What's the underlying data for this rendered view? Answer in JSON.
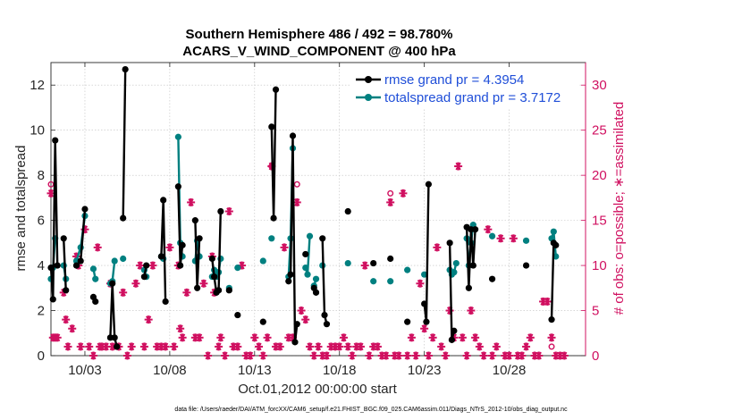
{
  "chart_data": {
    "type": "line",
    "title": "Southern Hemisphere 486 / 492 = 98.780%",
    "subtitle": "ACARS_V_WIND_COMPONENT @ 400 hPa",
    "xlabel": "Oct.01,2012 00:00:00 start",
    "ylabel": "rmse and totalspread",
    "ylabel_right": "# of obs: o=possible; ∗=assimilated",
    "footnote": "data file: /Users/raeder/DAI/ATM_forcXX/CAM6_setup/f.e21.FHIST_BGC.f09_025.CAM6assim.011/Diags_NTrS_2012-10/obs_diag_output.nc",
    "xlim": [
      1,
      32.5
    ],
    "ylim": [
      0,
      13
    ],
    "ylim_right": [
      0,
      32.5
    ],
    "xticks": [
      3,
      8,
      13,
      18,
      23,
      28
    ],
    "xticklabels": [
      "10/03",
      "10/08",
      "10/13",
      "10/18",
      "10/23",
      "10/28"
    ],
    "yticks": [
      0,
      2,
      4,
      6,
      8,
      10,
      12
    ],
    "yticks_right": [
      0,
      5,
      10,
      15,
      20,
      25,
      30
    ],
    "grid": true,
    "legend_position": "top-right",
    "colors": {
      "rmse": "#000000",
      "totalspread": "#008080",
      "obs": "#d01060",
      "legend_text": "#1f4ed8"
    },
    "series": [
      {
        "name": "rmse grand pr = 4.3954",
        "segments": [
          [
            [
              1.0,
              3.9
            ],
            [
              1.12,
              2.5
            ],
            [
              1.25,
              9.55
            ],
            [
              1.38,
              4.0
            ]
          ],
          [
            [
              1.75,
              5.2
            ],
            [
              1.88,
              2.9
            ]
          ],
          [
            [
              2.5,
              4.0
            ],
            [
              2.75,
              4.2
            ],
            [
              3.0,
              6.5
            ]
          ],
          [
            [
              3.5,
              2.6
            ],
            [
              3.62,
              2.4
            ]
          ],
          [
            [
              4.5,
              0.8
            ],
            [
              4.62,
              3.2
            ],
            [
              4.75,
              0.8
            ],
            [
              4.88,
              0.4
            ]
          ],
          [
            [
              5.25,
              6.1
            ],
            [
              5.38,
              12.7
            ]
          ],
          [
            [
              6.5,
              3.5
            ],
            [
              6.62,
              4.0
            ]
          ],
          [
            [
              7.5,
              4.4
            ],
            [
              7.62,
              6.9
            ],
            [
              7.75,
              2.4
            ]
          ],
          [
            [
              8.5,
              7.5
            ],
            [
              8.62,
              4.0
            ],
            [
              8.75,
              4.9
            ]
          ],
          [
            [
              9.5,
              6.0
            ],
            [
              9.62,
              3.0
            ],
            [
              9.75,
              5.2
            ]
          ],
          [
            [
              10.5,
              4.3
            ],
            [
              10.62,
              3.5
            ],
            [
              10.75,
              2.8
            ],
            [
              10.88,
              2.9
            ],
            [
              11.0,
              6.4
            ]
          ],
          [
            [
              11.5,
              2.9
            ]
          ],
          [
            [
              12.0,
              1.8
            ]
          ],
          [
            [
              13.5,
              1.5
            ]
          ],
          [
            [
              14.0,
              10.15
            ],
            [
              14.12,
              6.1
            ],
            [
              14.25,
              11.8
            ]
          ],
          [
            [
              15.0,
              3.3
            ],
            [
              15.12,
              3.6
            ],
            [
              15.25,
              9.75
            ],
            [
              15.38,
              0.6
            ],
            [
              15.5,
              1.4
            ]
          ],
          [
            [
              16.0,
              4.5
            ]
          ],
          [
            [
              16.5,
              3.0
            ],
            [
              16.62,
              2.8
            ]
          ],
          [
            [
              17.0,
              5.2
            ],
            [
              17.12,
              1.8
            ],
            [
              17.25,
              1.4
            ]
          ],
          [
            [
              18.5,
              6.4
            ]
          ],
          [
            [
              20.0,
              4.1
            ]
          ],
          [
            [
              21.0,
              4.3
            ]
          ],
          [
            [
              22.0,
              1.5
            ]
          ],
          [
            [
              23.0,
              2.3
            ],
            [
              23.12,
              1.5
            ],
            [
              23.25,
              7.6
            ]
          ],
          [
            [
              24.5,
              5.0
            ],
            [
              24.62,
              0.7
            ],
            [
              24.75,
              1.1
            ]
          ],
          [
            [
              25.5,
              5.7
            ],
            [
              25.62,
              3.0
            ],
            [
              25.75,
              5.6
            ],
            [
              25.88,
              4.0
            ],
            [
              26.0,
              5.6
            ]
          ],
          [
            [
              27.0,
              3.4
            ]
          ],
          [
            [
              29.0,
              4.0
            ]
          ],
          [
            [
              30.5,
              1.6
            ],
            [
              30.62,
              5.0
            ],
            [
              30.75,
              4.9
            ]
          ]
        ]
      },
      {
        "name": "totalspread grand pr = 3.7172",
        "segments": [
          [
            [
              1.0,
              3.4
            ],
            [
              1.12,
              3.9
            ],
            [
              1.25,
              5.2
            ]
          ],
          [
            [
              1.75,
              4.0
            ],
            [
              1.88,
              3.4
            ]
          ],
          [
            [
              2.5,
              4.2
            ],
            [
              2.75,
              4.8
            ],
            [
              3.0,
              6.2
            ]
          ],
          [
            [
              3.5,
              3.85
            ],
            [
              3.62,
              3.4
            ]
          ],
          [
            [
              4.5,
              3.2
            ],
            [
              4.62,
              3.3
            ],
            [
              4.75,
              4.2
            ]
          ],
          [
            [
              5.25,
              4.3
            ]
          ],
          [
            [
              6.5,
              3.8
            ],
            [
              6.62,
              3.5
            ]
          ],
          [
            [
              7.5,
              4.4
            ],
            [
              7.62,
              4.3
            ]
          ],
          [
            [
              8.5,
              9.7
            ],
            [
              8.62,
              5.0
            ],
            [
              8.75,
              4.4
            ]
          ],
          [
            [
              9.5,
              4.2
            ],
            [
              9.62,
              5.1
            ],
            [
              9.75,
              4.4
            ]
          ],
          [
            [
              10.5,
              3.5
            ],
            [
              10.62,
              3.8
            ],
            [
              10.75,
              3.5
            ],
            [
              10.88,
              3.7
            ],
            [
              11.0,
              4.3
            ]
          ],
          [
            [
              11.5,
              3.0
            ]
          ],
          [
            [
              12.0,
              3.9
            ]
          ],
          [
            [
              13.5,
              4.2
            ]
          ],
          [
            [
              14.0,
              5.2
            ]
          ],
          [
            [
              15.0,
              3.5
            ],
            [
              15.12,
              5.2
            ],
            [
              15.25,
              9.2
            ]
          ],
          [
            [
              16.0,
              3.9
            ],
            [
              16.12,
              3.6
            ],
            [
              16.25,
              5.3
            ]
          ],
          [
            [
              16.5,
              3.1
            ],
            [
              16.62,
              3.4
            ]
          ],
          [
            [
              17.0,
              4.0
            ]
          ],
          [
            [
              18.5,
              4.1
            ]
          ],
          [
            [
              20.0,
              3.3
            ]
          ],
          [
            [
              21.0,
              3.3
            ]
          ],
          [
            [
              22.0,
              3.8
            ]
          ],
          [
            [
              23.0,
              3.6
            ]
          ],
          [
            [
              24.5,
              3.8
            ],
            [
              24.62,
              3.6
            ],
            [
              24.75,
              3.7
            ],
            [
              24.88,
              4.1
            ]
          ],
          [
            [
              25.5,
              5.2
            ],
            [
              25.62,
              4.0
            ],
            [
              25.75,
              5.0
            ],
            [
              25.88,
              5.8
            ]
          ],
          [
            [
              27.0,
              5.3
            ]
          ],
          [
            [
              29.0,
              5.1
            ]
          ],
          [
            [
              30.5,
              5.2
            ],
            [
              30.62,
              5.5
            ],
            [
              30.75,
              4.4
            ]
          ]
        ]
      },
      {
        "name": "obs possible",
        "axis": "right",
        "marker": "o",
        "points": [
          [
            1.0,
            19.0
          ],
          [
            14.0,
            21.0
          ],
          [
            15.5,
            19.0
          ],
          [
            21.0,
            18.0
          ],
          [
            30.5,
            1.0
          ]
        ]
      },
      {
        "name": "obs assimilated",
        "axis": "right",
        "marker": "*",
        "points": [
          [
            1.0,
            18.0
          ],
          [
            1.12,
            2.0
          ],
          [
            1.25,
            2.0
          ],
          [
            1.38,
            2.0
          ],
          [
            1.75,
            7.0
          ],
          [
            1.88,
            4.0
          ],
          [
            2.0,
            1.0
          ],
          [
            2.25,
            3.0
          ],
          [
            2.5,
            11.0
          ],
          [
            2.62,
            10.0
          ],
          [
            2.75,
            1.0
          ],
          [
            3.0,
            14.0
          ],
          [
            3.25,
            1.0
          ],
          [
            3.5,
            0.0
          ],
          [
            3.75,
            12.0
          ],
          [
            3.88,
            1.0
          ],
          [
            4.0,
            1.0
          ],
          [
            4.25,
            1.0
          ],
          [
            4.5,
            8.0
          ],
          [
            4.62,
            1.0
          ],
          [
            5.0,
            1.0
          ],
          [
            5.25,
            7.0
          ],
          [
            5.5,
            0.0
          ],
          [
            5.75,
            1.0
          ],
          [
            6.0,
            8.0
          ],
          [
            6.25,
            10.0
          ],
          [
            6.5,
            1.0
          ],
          [
            6.75,
            4.0
          ],
          [
            7.0,
            10.0
          ],
          [
            7.25,
            1.0
          ],
          [
            7.5,
            1.0
          ],
          [
            7.75,
            1.0
          ],
          [
            8.0,
            12.0
          ],
          [
            8.25,
            1.0
          ],
          [
            8.5,
            10.0
          ],
          [
            8.62,
            3.0
          ],
          [
            8.75,
            2.0
          ],
          [
            9.0,
            7.0
          ],
          [
            9.25,
            17.0
          ],
          [
            9.5,
            2.0
          ],
          [
            9.75,
            2.0
          ],
          [
            10.0,
            8.0
          ],
          [
            10.25,
            0.0
          ],
          [
            10.5,
            11.0
          ],
          [
            10.62,
            7.0
          ],
          [
            10.88,
            1.0
          ],
          [
            11.0,
            2.0
          ],
          [
            11.25,
            0.0
          ],
          [
            11.5,
            16.0
          ],
          [
            11.75,
            1.0
          ],
          [
            12.0,
            1.0
          ],
          [
            12.25,
            10.0
          ],
          [
            12.5,
            0.0
          ],
          [
            12.75,
            0.0
          ],
          [
            13.0,
            2.0
          ],
          [
            13.25,
            1.0
          ],
          [
            13.5,
            0.0
          ],
          [
            13.75,
            2.0
          ],
          [
            14.0,
            21.0
          ],
          [
            14.25,
            1.0
          ],
          [
            14.5,
            1.0
          ],
          [
            14.75,
            12.0
          ],
          [
            15.0,
            2.0
          ],
          [
            15.25,
            2.0
          ],
          [
            15.5,
            17.0
          ],
          [
            15.75,
            5.0
          ],
          [
            16.0,
            4.0
          ],
          [
            16.25,
            1.0
          ],
          [
            16.5,
            0.0
          ],
          [
            16.75,
            1.0
          ],
          [
            17.0,
            0.0
          ],
          [
            17.25,
            0.0
          ],
          [
            17.5,
            1.0
          ],
          [
            17.75,
            1.0
          ],
          [
            18.0,
            1.0
          ],
          [
            18.25,
            2.0
          ],
          [
            18.5,
            1.0
          ],
          [
            18.75,
            0.0
          ],
          [
            19.0,
            1.0
          ],
          [
            19.25,
            1.0
          ],
          [
            19.5,
            10.0
          ],
          [
            19.75,
            0.0
          ],
          [
            20.0,
            1.0
          ],
          [
            20.25,
            1.0
          ],
          [
            20.5,
            0.0
          ],
          [
            20.75,
            0.0
          ],
          [
            21.0,
            17.0
          ],
          [
            21.25,
            0.0
          ],
          [
            21.5,
            0.0
          ],
          [
            21.75,
            18.0
          ],
          [
            22.0,
            0.0
          ],
          [
            22.25,
            2.0
          ],
          [
            22.5,
            0.0
          ],
          [
            22.75,
            8.0
          ],
          [
            23.0,
            3.0
          ],
          [
            23.25,
            0.0
          ],
          [
            23.5,
            2.0
          ],
          [
            23.75,
            12.0
          ],
          [
            24.0,
            1.0
          ],
          [
            24.25,
            0.0
          ],
          [
            24.5,
            5.0
          ],
          [
            24.75,
            2.0
          ],
          [
            25.0,
            21.0
          ],
          [
            25.25,
            2.0
          ],
          [
            25.5,
            0.0
          ],
          [
            25.75,
            5.0
          ],
          [
            26.0,
            2.0
          ],
          [
            26.25,
            1.0
          ],
          [
            26.5,
            0.0
          ],
          [
            26.75,
            14.0
          ],
          [
            27.0,
            0.0
          ],
          [
            27.25,
            1.0
          ],
          [
            27.5,
            13.0
          ],
          [
            27.75,
            0.0
          ],
          [
            28.0,
            0.0
          ],
          [
            28.25,
            13.0
          ],
          [
            28.5,
            0.0
          ],
          [
            28.75,
            0.0
          ],
          [
            29.0,
            1.0
          ],
          [
            29.25,
            2.0
          ],
          [
            29.5,
            0.0
          ],
          [
            29.75,
            0.0
          ],
          [
            30.0,
            6.0
          ],
          [
            30.25,
            6.0
          ],
          [
            30.5,
            2.0
          ],
          [
            30.75,
            0.0
          ],
          [
            31.0,
            0.0
          ],
          [
            31.25,
            0.0
          ]
        ]
      }
    ]
  }
}
